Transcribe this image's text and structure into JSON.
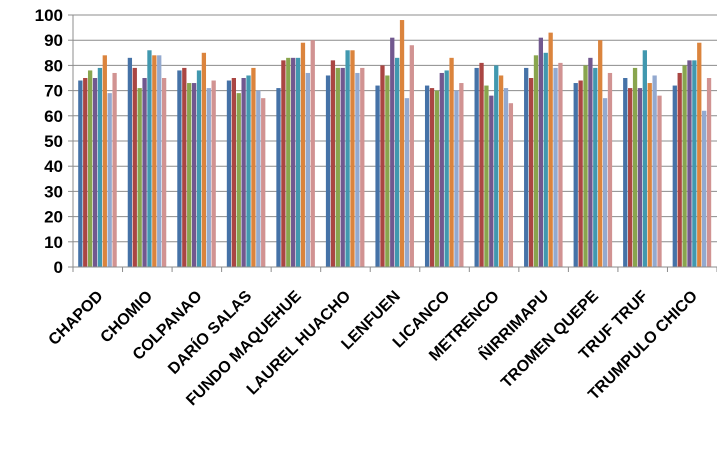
{
  "chart_data": {
    "type": "bar",
    "categories": [
      "CHAPOD",
      "CHOMIO",
      "COLPANAO",
      "DARÍO SALAS",
      "FUNDO MAQUEHUE",
      "LAUREL HUACHO",
      "LENFUEN",
      "LICANCO",
      "METRENCO",
      "ÑIRRIMAPU",
      "TROMEN QUEPE",
      "TRUF TRUF",
      "TRUMPULO CHICO"
    ],
    "ylim": [
      0,
      100
    ],
    "yticks": [
      0,
      10,
      20,
      30,
      40,
      50,
      60,
      70,
      80,
      90,
      100
    ],
    "grid": true,
    "legend": "none",
    "series": [
      {
        "color": "#4572A7",
        "values": [
          74,
          83,
          78,
          74,
          71,
          76,
          72,
          72,
          79,
          79,
          73,
          75,
          72
        ]
      },
      {
        "color": "#AA4643",
        "values": [
          75,
          79,
          79,
          75,
          82,
          82,
          80,
          71,
          81,
          75,
          74,
          71,
          77
        ]
      },
      {
        "color": "#89A54E",
        "values": [
          78,
          71,
          73,
          69,
          83,
          79,
          76,
          70,
          72,
          84,
          80,
          79,
          80
        ]
      },
      {
        "color": "#71588F",
        "values": [
          75,
          75,
          73,
          75,
          83,
          79,
          91,
          77,
          68,
          91,
          83,
          71,
          82
        ]
      },
      {
        "color": "#4198AF",
        "values": [
          79,
          86,
          78,
          76,
          83,
          86,
          83,
          78,
          80,
          85,
          79,
          86,
          82
        ]
      },
      {
        "color": "#DB843D",
        "values": [
          84,
          84,
          85,
          79,
          89,
          86,
          98,
          83,
          76,
          93,
          90,
          73,
          89
        ]
      },
      {
        "color": "#93A9CF",
        "values": [
          69,
          84,
          71,
          70,
          77,
          77,
          67,
          70,
          71,
          79,
          67,
          76,
          62
        ]
      },
      {
        "color": "#D19392",
        "values": [
          77,
          75,
          74,
          67,
          90,
          79,
          88,
          73,
          65,
          81,
          77,
          68,
          75
        ]
      }
    ]
  }
}
